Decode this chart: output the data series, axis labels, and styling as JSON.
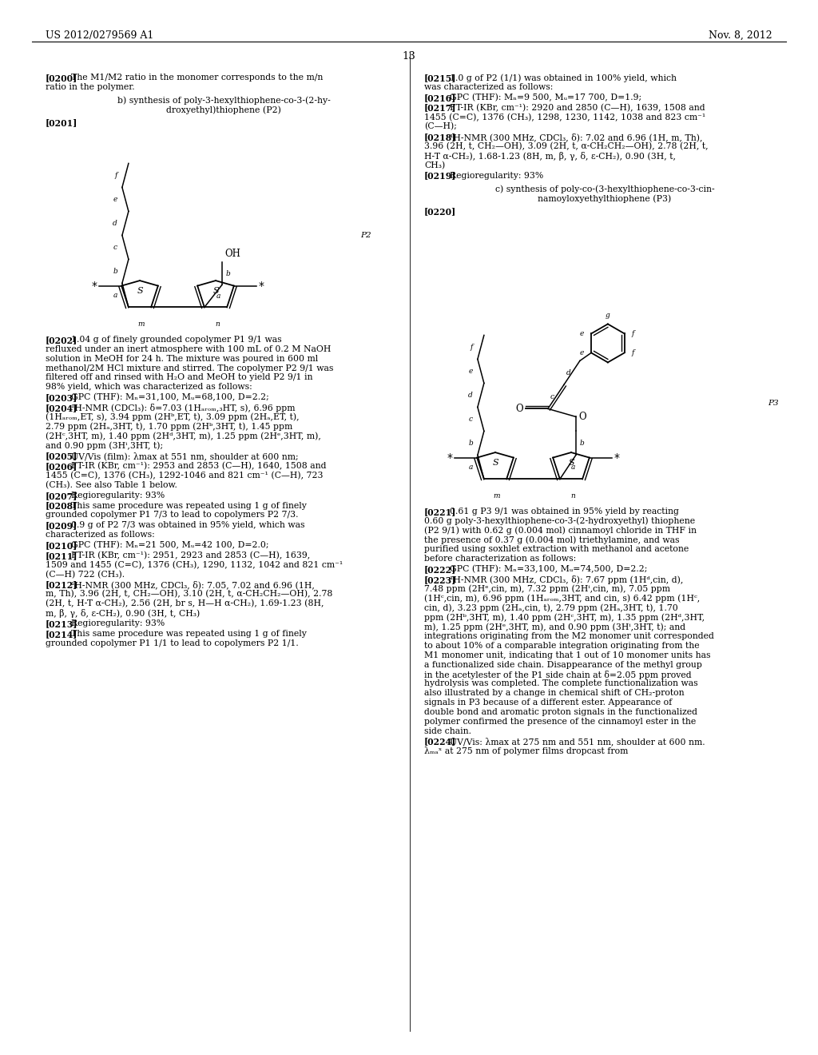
{
  "header_left": "US 2012/0279569 A1",
  "header_right": "Nov. 8, 2012",
  "page_number": "13",
  "left_paragraphs": [
    {
      "tag": "[0200]",
      "text": "The M1/M2 ratio in the monomer corresponds to the m/n ratio in the polymer."
    },
    {
      "tag": "[0202]",
      "text": "1.04 g of finely grounded copolymer P1 9/1 was refluxed under an inert atmosphere with 100 mL of 0.2 M NaOH solution in MeOH for 24 h. The mixture was poured in 600 ml methanol/2M HCl mixture and stirred. The copolymer P2 9/1 was filtered off and rinsed with H₂O and MeOH to yield P2 9/1 in 98% yield, which was characterized as follows:"
    },
    {
      "tag": "[0203]",
      "text": "GPC (THF): Mₙ=31,100, Mᵤ=68,100, D=2.2;"
    },
    {
      "tag": "[0204]",
      "text": "¹H-NMR (CDCl₃): δ=7.03 (1Hₐᵣₒₘ,₃HT, s), 6.96 ppm (1Hₐᵣₒₘ,ET, s), 3.94 ppm (2Hᵇ,ET, t), 3.09 ppm (2Hₐ,ET, t), 2.79 ppm (2Hₐ,3HT, t), 1.70 ppm (2Hᵇ,3HT, t), 1.45 ppm (2Hᶜ,3HT, m), 1.40 ppm (2Hᵈ,3HT, m), 1.25 ppm (2Hᵉ,3HT, m), and 0.90 ppm (3Hⁱ,3HT, t);"
    },
    {
      "tag": "[0205]",
      "text": "UV/Vis (film): λmax at 551 nm, shoulder at 600 nm;"
    },
    {
      "tag": "[0206]",
      "text": "FT-IR (KBr, cm⁻¹): 2953 and 2853 (C—H), 1640, 1508 and 1455 (C=C), 1376 (CH₃), 1292-1046 and 821 cm⁻¹ (C—H), 723 (CH₃). See also Table 1 below."
    },
    {
      "tag": "[0207]",
      "text": "Regioregularity: 93%"
    },
    {
      "tag": "[0208]",
      "text": "This same procedure was repeated using 1 g of finely grounded copolymer P1 7/3 to lead to copolymers P2 7/3."
    },
    {
      "tag": "[0209]",
      "text": "0.9 g of P2 7/3 was obtained in 95% yield, which was characterized as follows:"
    },
    {
      "tag": "[0210]",
      "text": "GPC (THF): Mₙ=21 500, Mᵤ=42 100, D=2.0;"
    },
    {
      "tag": "[0211]",
      "text": "FT-IR (KBr, cm⁻¹): 2951, 2923 and 2853 (C—H), 1639, 1509 and 1455 (C=C), 1376 (CH₃), 1290, 1132, 1042 and 821 cm⁻¹ (C—H) 722 (CH₃)."
    },
    {
      "tag": "[0212]",
      "text": "¹H-NMR (300 MHz, CDCl₃, δ): 7.05, 7.02 and 6.96 (1H, m, Th), 3.96 (2H, t, CH₂—OH), 3.10 (2H, t, α-CH₂CH₂—OH), 2.78 (2H, t, H-T α-CH₂), 2.56 (2H, br s, H—H α-CH₂), 1.69-1.23 (8H, m, β, γ, δ, ε-CH₂), 0.90 (3H, t, CH₃)"
    },
    {
      "tag": "[0213]",
      "text": "Regioregularity: 93%"
    },
    {
      "tag": "[0214]",
      "text": "This same procedure was repeated using 1 g of finely grounded copolymer P1 1/1 to lead to copolymers P2 1/1."
    }
  ],
  "right_paragraphs": [
    {
      "tag": "[0215]",
      "text": "1.0 g of P2 (1/1) was obtained in 100% yield, which was characterized as follows:"
    },
    {
      "tag": "[0216]",
      "text": "GPC (THF): Mₙ=9 500, Mᵤ=17 700, D=1.9;"
    },
    {
      "tag": "[0217]",
      "text": "FT-IR (KBr, cm⁻¹): 2920 and 2850 (C—H), 1639, 1508 and 1455 (C=C), 1376 (CH₃), 1298, 1230, 1142, 1038 and 823 cm⁻¹ (C—H);"
    },
    {
      "tag": "[0218]",
      "text": "¹H-NMR (300 MHz, CDCl₃, δ): 7.02 and 6.96 (1H, m, Th), 3.96 (2H, t, CH₂—OH), 3.09 (2H, t, α-CH₂CH₂—OH), 2.78 (2H, t, H-T α-CH₂), 1.68-1.23 (8H, m, β, γ, δ, ε-CH₂), 0.90 (3H, t, CH₃)"
    },
    {
      "tag": "[0219]",
      "text": "Regioregularity: 93%"
    },
    {
      "tag": "[0221]",
      "text": "0.61 g P3 9/1 was obtained in 95% yield by reacting 0.60 g poly-3-hexylthiophene-co-3-(2-hydroxyethyl) thiophene (P2 9/1) with 0.62 g (0.004 mol) cinnamoyl chloride in THF in the presence of 0.37 g (0.004 mol) triethylamine, and was purified using soxhlet extraction with methanol and acetone before characterization as follows:"
    },
    {
      "tag": "[0222]",
      "text": "GPC (THF): Mₙ=33,100, Mᵤ=74,500, D=2.2;"
    },
    {
      "tag": "[0223]",
      "text": "¹H-NMR (300 MHz, CDCl₃, δ): 7.67 ppm (1Hᵈ,cin, d), 7.48 ppm (2Hᵉ,cin, m), 7.32 ppm (2Hⁱ,cin, m), 7.05 ppm (1Hᶜ,cin, m), 6.96 ppm (1Hₐᵣₒₘ,3HT, and cin, s) 6.42 ppm (1Hᶜ, cin, d), 3.23 ppm (2Hₐ,cin, t), 2.79 ppm (2Hₐ,3HT, t), 1.70 ppm (2Hᵇ,3HT, m), 1.40 ppm (2Hᶜ,3HT, m), 1.35 ppm (2Hᵈ,3HT, m), 1.25 ppm (2Hᵉ,3HT, m), and 0.90 ppm (3Hⁱ,3HT, t); and integrations originating from the M2 monomer unit corresponded to about 10% of a comparable integration originating from the M1 monomer unit, indicating that 1 out of 10 monomer units has a functionalized side chain. Disappearance of the methyl group in the acetylester of the P1 side chain at δ=2.05 ppm proved hydrolysis was completed. The complete functionalization was also illustrated by a change in chemical shift of CH₂-proton signals in P3 because of a different ester. Appearance of double bond and aromatic proton signals in the functionalized polymer confirmed the presence of the cinnamoyl ester in the side chain."
    },
    {
      "tag": "[0224]",
      "text": "UV/Vis: λmax at 275 nm and 551 nm, shoulder at 600 nm. λₘₐˣ at 275 nm of polymer films dropcast from"
    }
  ],
  "section_b_title": [
    "b) synthesis of poly-3-hexylthiophene-co-3-(2-hy-",
    "droxyethyl)thiophene (P2)"
  ],
  "section_c_title": [
    "c) synthesis of poly-co-(3-hexylthiophene-co-3-cin-",
    "namoyloxyethylthiophene (P3)"
  ]
}
